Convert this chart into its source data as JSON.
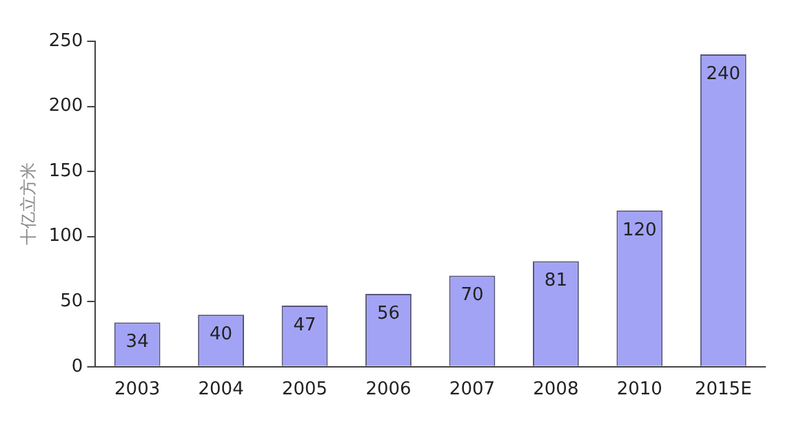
{
  "chart_data": {
    "type": "bar",
    "ylabel": "十亿立方米",
    "categories": [
      "2003",
      "2004",
      "2005",
      "2006",
      "2007",
      "2008",
      "2010",
      "2015E"
    ],
    "values": [
      34,
      40,
      47,
      56,
      70,
      81,
      120,
      240
    ],
    "color": "#a3a3f5",
    "ylim": [
      0,
      250
    ],
    "yticks": [
      0,
      50,
      100,
      150,
      200,
      250
    ],
    "grid": false,
    "legend": false,
    "data_labels": true
  }
}
